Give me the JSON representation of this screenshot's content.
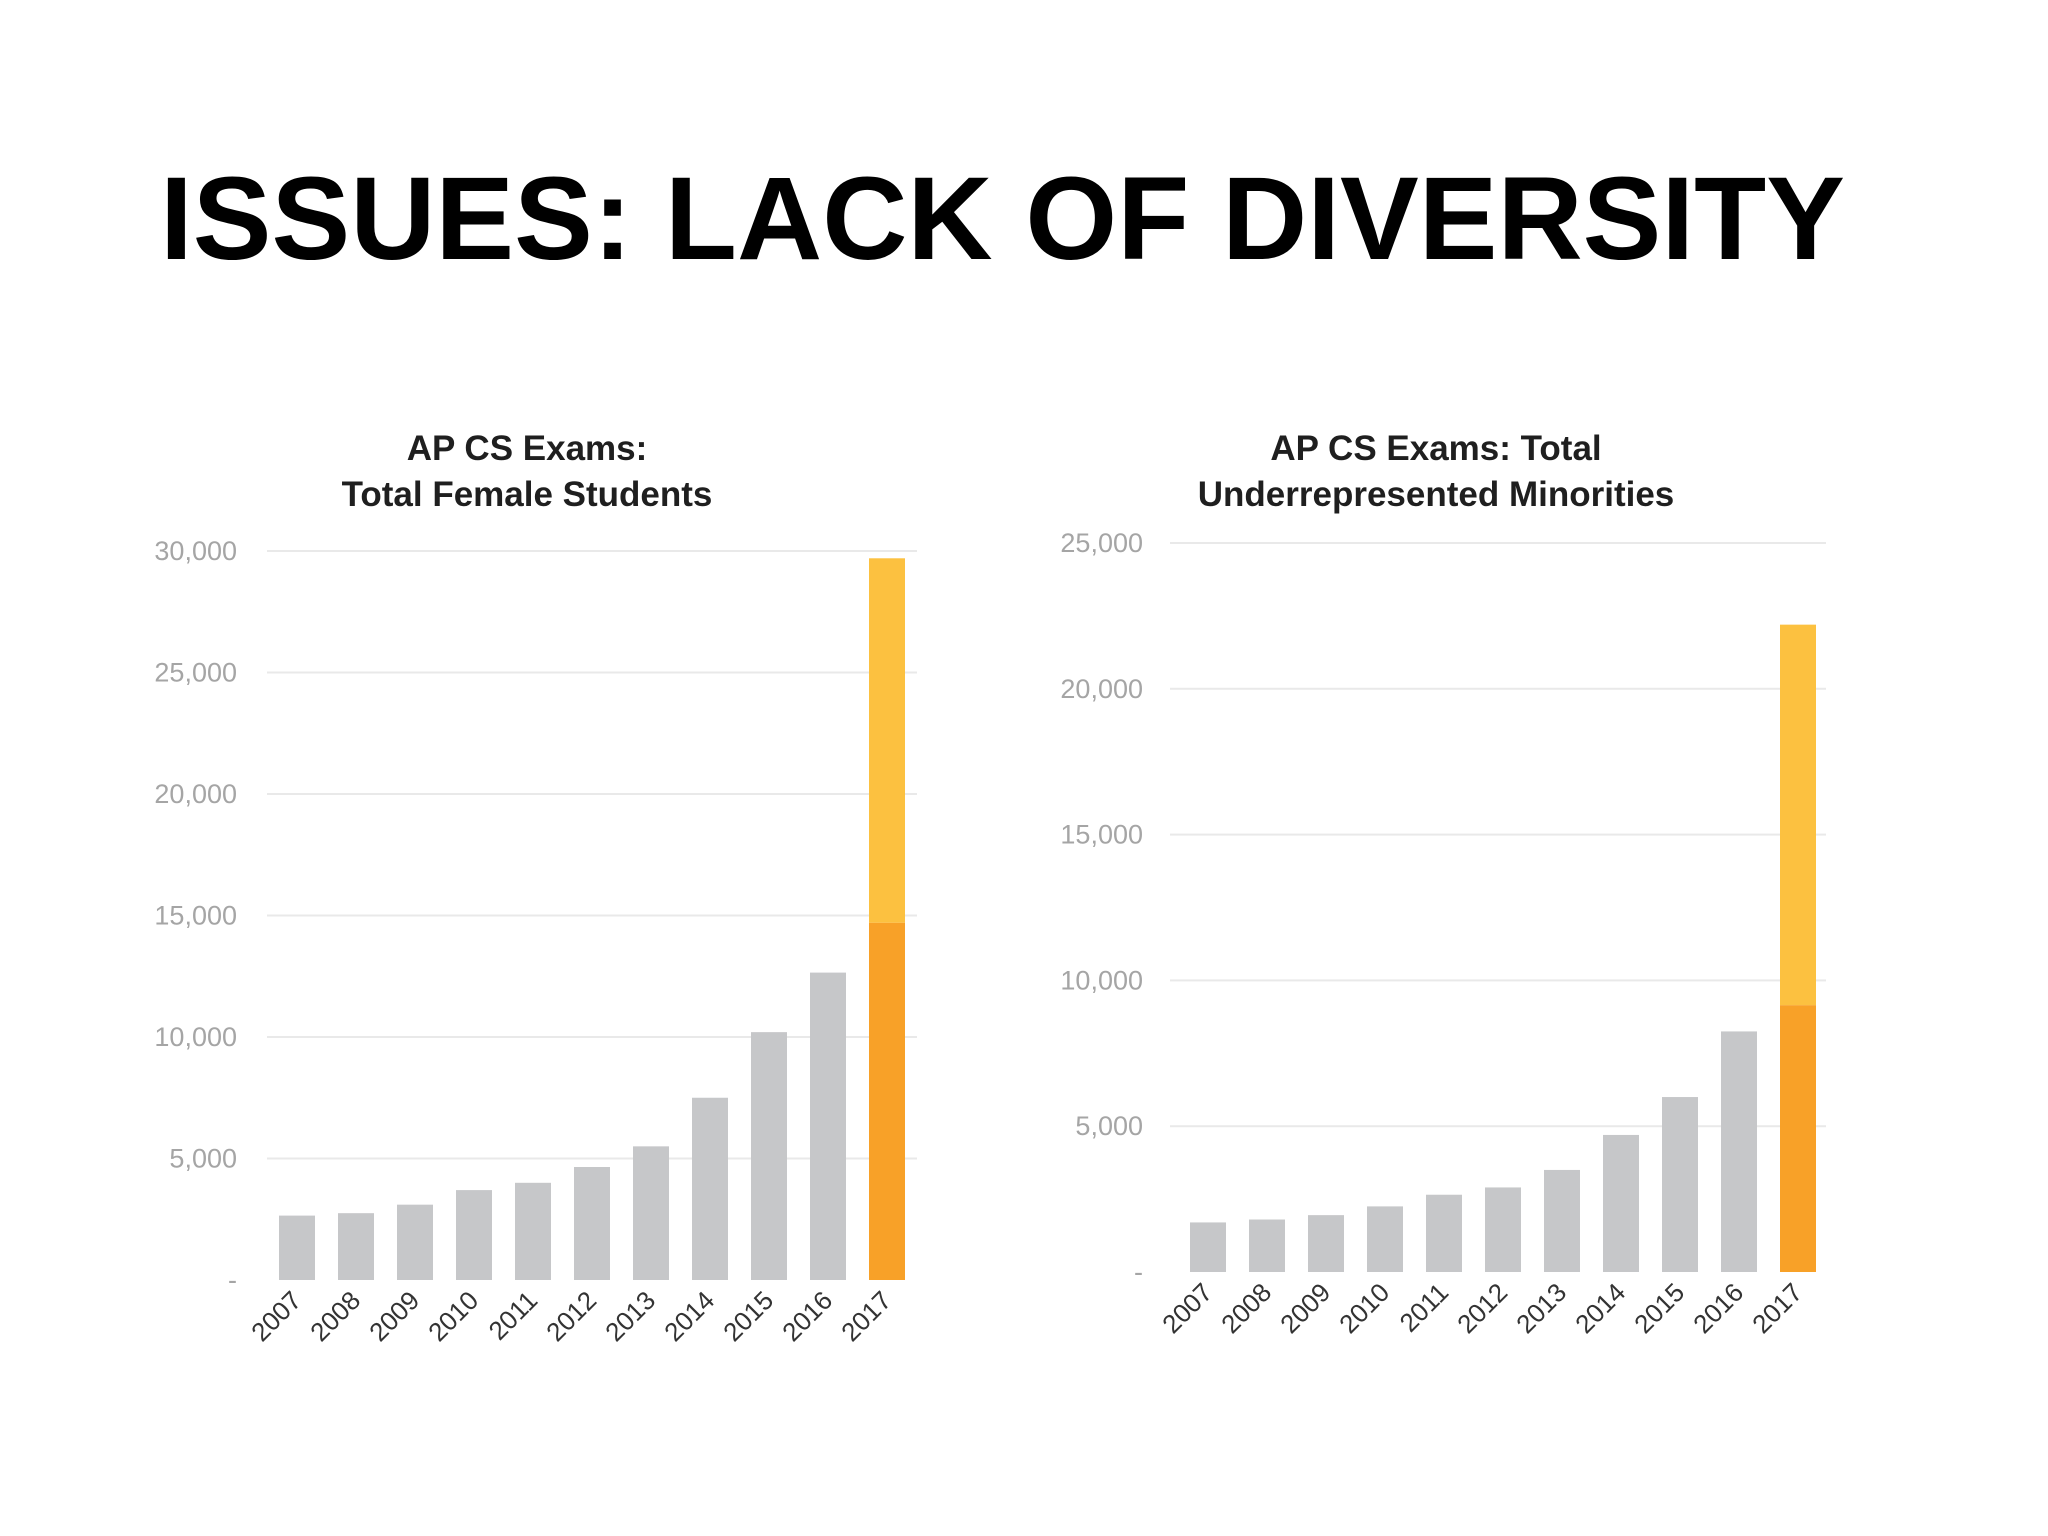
{
  "slide": {
    "title": "ISSUES: LACK OF DIVERSITY"
  },
  "colors": {
    "bar_gray": "#c6c7c9",
    "highlight_light": "#fcc140",
    "highlight_dark": "#f8a128",
    "grid": "#e9e9e9",
    "tick_text": "#a5a5a5",
    "title_text": "#1f1f1f",
    "category_text": "#333333"
  },
  "chart_data": [
    {
      "type": "bar",
      "title": "AP CS Exams:\nTotal Female Students",
      "title_lines": [
        "AP CS Exams:",
        "Total Female Students"
      ],
      "categories": [
        "2007",
        "2008",
        "2009",
        "2010",
        "2011",
        "2012",
        "2013",
        "2014",
        "2015",
        "2016",
        "2017"
      ],
      "values": [
        2650,
        2750,
        3100,
        3700,
        4000,
        4650,
        5500,
        7500,
        10200,
        12650,
        29700
      ],
      "highlight": {
        "category": "2017",
        "lower_value": 14700,
        "description": "stacked: dark orange lower segment, light orange upper segment"
      },
      "ylim": [
        0,
        30000
      ],
      "yticks": [
        0,
        5000,
        10000,
        15000,
        20000,
        25000,
        30000
      ],
      "ytick_labels": [
        "-",
        "5,000",
        "10,000",
        "15,000",
        "20,000",
        "25,000",
        "30,000"
      ],
      "xlabel": "",
      "ylabel": "",
      "grid": true,
      "legend": "none"
    },
    {
      "type": "bar",
      "title": "AP CS Exams: Total\nUnderrepresented Minorities",
      "title_lines": [
        "AP CS Exams: Total",
        "Underrepresented Minorities"
      ],
      "categories": [
        "2007",
        "2008",
        "2009",
        "2010",
        "2011",
        "2012",
        "2013",
        "2014",
        "2015",
        "2016",
        "2017"
      ],
      "values": [
        1700,
        1800,
        1950,
        2250,
        2650,
        2900,
        3500,
        4700,
        6000,
        8250,
        22200
      ],
      "highlight": {
        "category": "2017",
        "lower_value": 9150,
        "description": "stacked: dark orange lower segment, light orange upper segment"
      },
      "ylim": [
        0,
        25000
      ],
      "yticks": [
        0,
        5000,
        10000,
        15000,
        20000,
        25000
      ],
      "ytick_labels": [
        "-",
        "5,000",
        "10,000",
        "15,000",
        "20,000",
        "25,000"
      ],
      "xlabel": "",
      "ylabel": "",
      "grid": true,
      "legend": "none"
    }
  ]
}
